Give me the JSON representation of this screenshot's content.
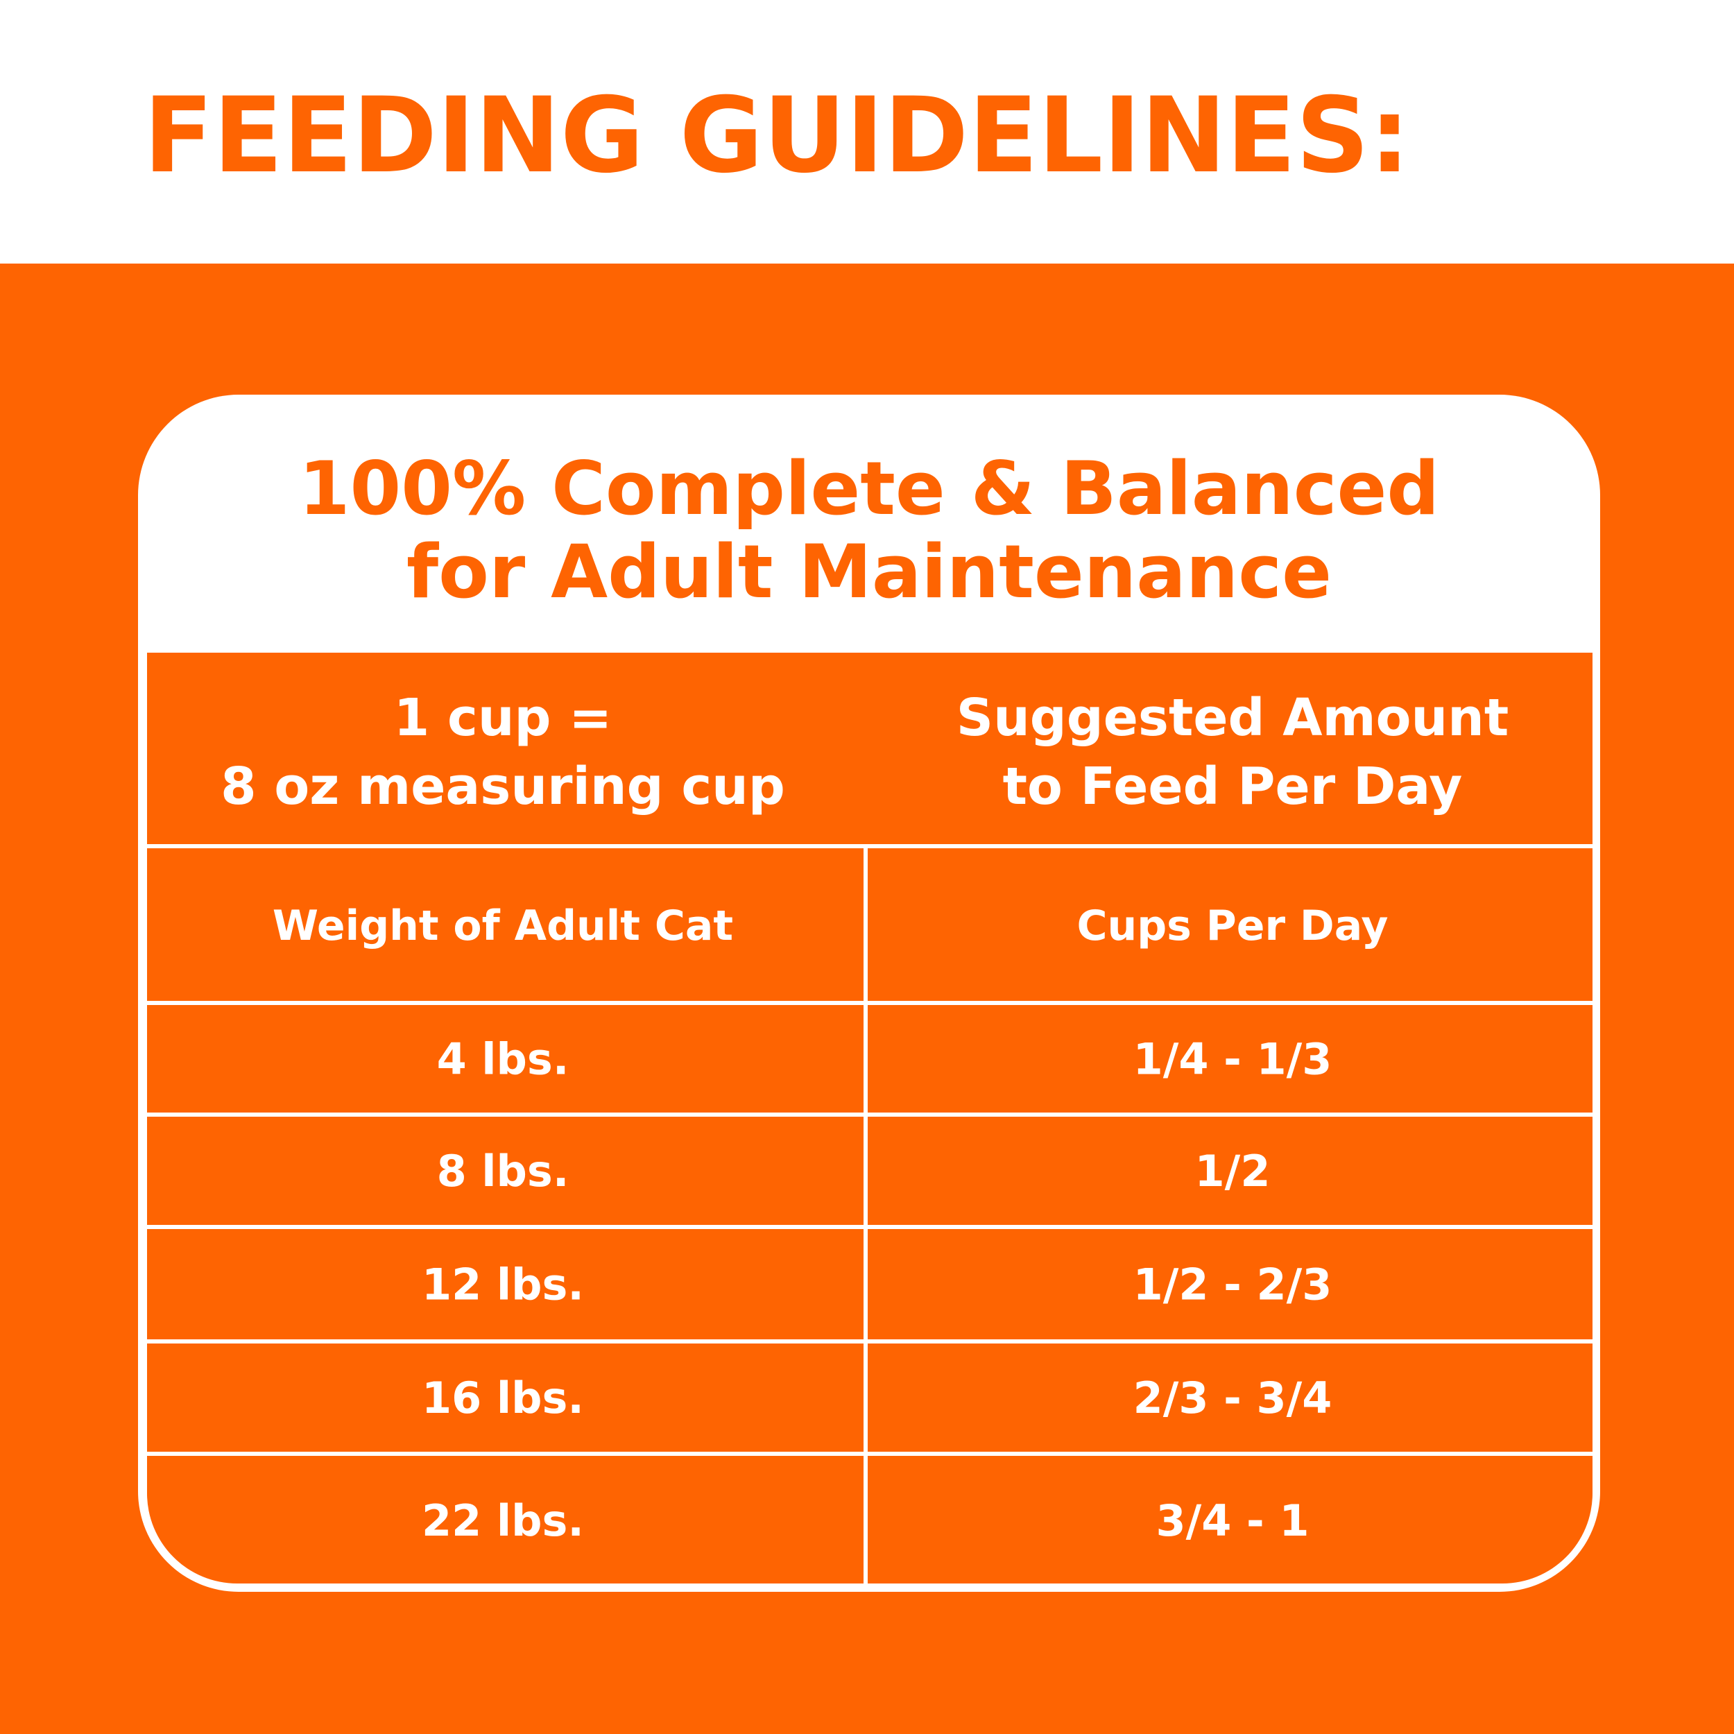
{
  "header": {
    "title": "FEEDING GUIDELINES:"
  },
  "card": {
    "title": [
      "100% Complete & Balanced",
      "for Adult Maintenance"
    ]
  },
  "table": {
    "header": [
      [
        "1 cup =",
        "8 oz measuring cup"
      ],
      [
        "Suggested Amount",
        "to Feed Per Day"
      ]
    ],
    "columns": [
      "Weight of Adult Cat",
      "Cups Per Day"
    ],
    "rows": [
      [
        "4 lbs.",
        "1/4 - 1/3"
      ],
      [
        "8 lbs.",
        "1/2"
      ],
      [
        "12 lbs.",
        "1/2 - 2/3"
      ],
      [
        "16 lbs.",
        "2/3 - 3/4"
      ],
      [
        "22 lbs.",
        "3/4 - 1"
      ]
    ]
  }
}
